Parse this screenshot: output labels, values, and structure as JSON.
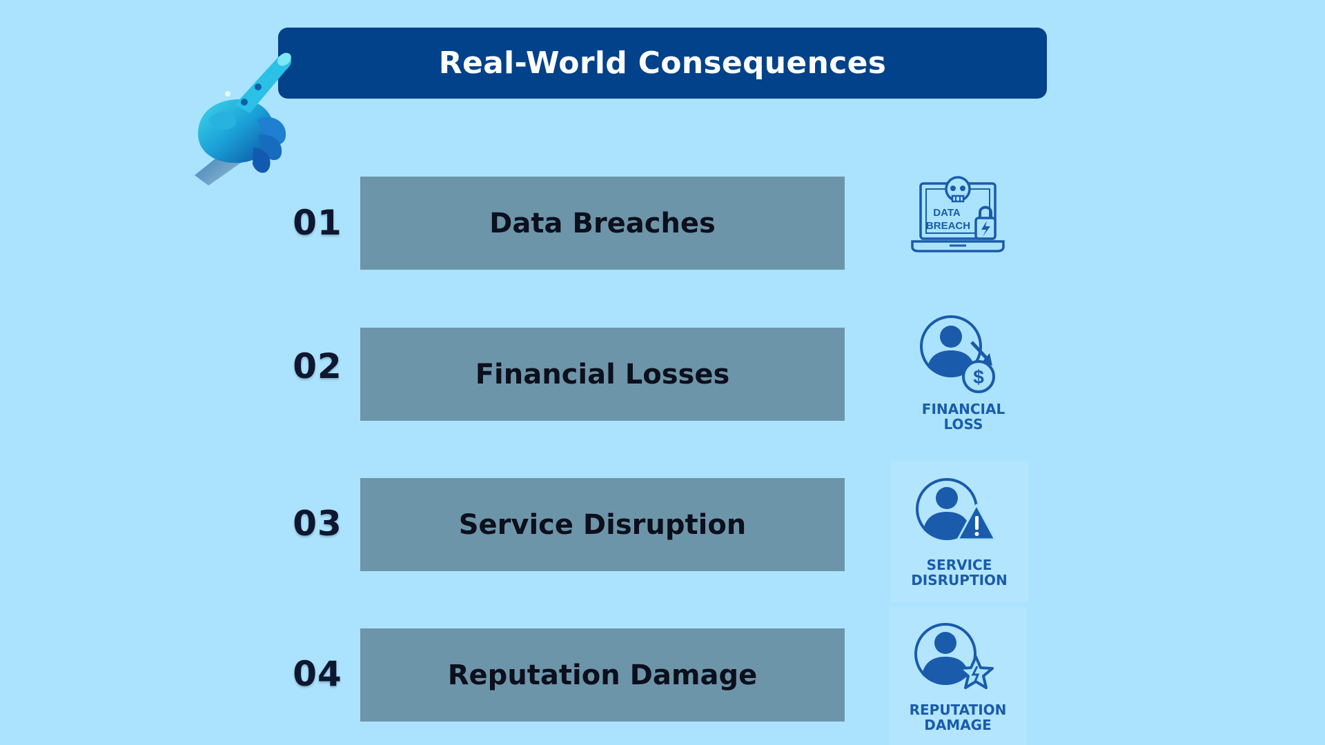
{
  "header": {
    "title": "Real-World Consequences"
  },
  "items": [
    {
      "number": "01",
      "label": "Data Breaches",
      "icon": {
        "name": "data-breach-icon",
        "text_line1": "DATA",
        "text_line2": "BREACH"
      }
    },
    {
      "number": "02",
      "label": "Financial Losses",
      "icon": {
        "name": "financial-loss-icon",
        "caption_line1": "FINANCIAL",
        "caption_line2": "LOSS"
      }
    },
    {
      "number": "03",
      "label": "Service Disruption",
      "icon": {
        "name": "service-disruption-icon",
        "caption_line1": "SERVICE",
        "caption_line2": "DISRUPTION"
      }
    },
    {
      "number": "04",
      "label": "Reputation Damage",
      "icon": {
        "name": "reputation-damage-icon",
        "caption_line1": "REPUTATION",
        "caption_line2": "DAMAGE"
      }
    }
  ],
  "colors": {
    "background": "#abe3fe",
    "title_bar": "#01428a",
    "row_box": "#6d95a9",
    "icon_blue": "#1a5bab",
    "number_text": "#0d1730"
  }
}
